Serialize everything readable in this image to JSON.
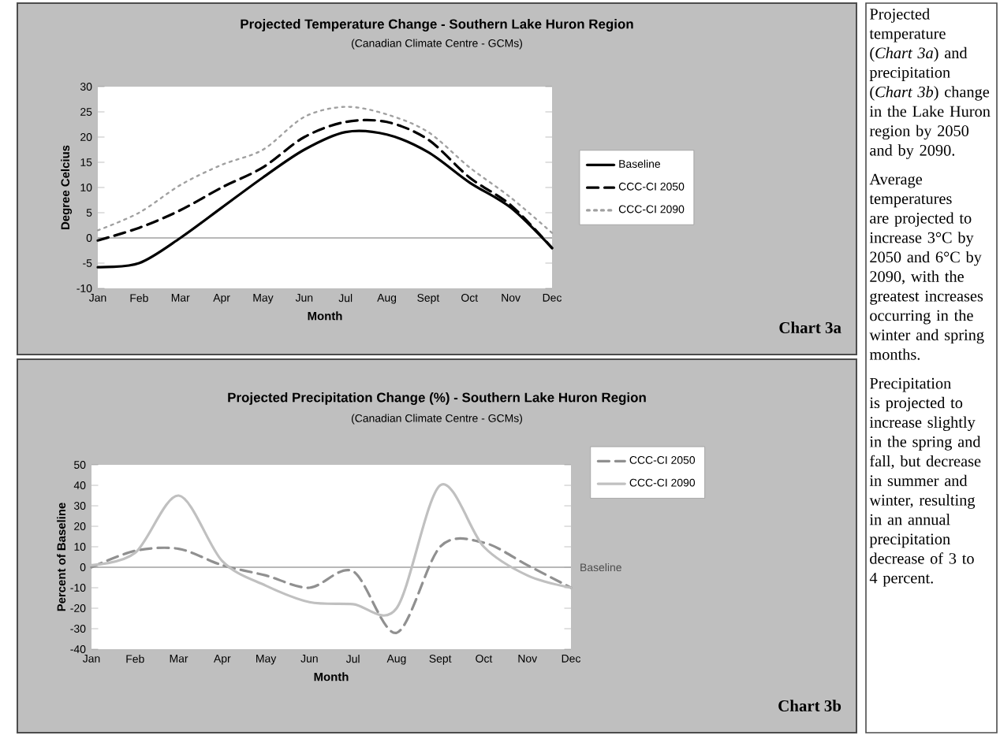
{
  "chart_data": [
    {
      "type": "line",
      "title": "Projected Temperature Change - Southern Lake Huron Region",
      "subtitle": "(Canadian Climate Centre - GCMs)",
      "xlabel": "Month",
      "ylabel": "Degree Celcius",
      "categories": [
        "Jan",
        "Feb",
        "Mar",
        "Apr",
        "May",
        "Jun",
        "Jul",
        "Aug",
        "Sept",
        "Oct",
        "Nov",
        "Dec"
      ],
      "ylim": [
        -10,
        30
      ],
      "yticks": [
        -10,
        -5,
        0,
        5,
        10,
        15,
        20,
        25,
        30
      ],
      "legend": "right",
      "series": [
        {
          "name": "Baseline",
          "color": "#000000",
          "line_style": "solid",
          "values": [
            -5.8,
            -5,
            0,
            6,
            12,
            17.5,
            21,
            20.5,
            17,
            11,
            6,
            -2
          ]
        },
        {
          "name": "CCC-CI 2050",
          "color": "#000000",
          "line_style": "dashed",
          "values": [
            -0.5,
            2,
            5.5,
            10,
            14,
            20,
            23,
            23,
            19.5,
            12,
            6.5,
            -2
          ]
        },
        {
          "name": "CCC-CI 2090",
          "color": "#a0a0a0",
          "line_style": "dotted",
          "values": [
            1.5,
            5,
            10.5,
            14.5,
            17.5,
            24,
            26,
            24.5,
            21,
            14,
            8,
            1
          ]
        }
      ],
      "ref_lines": [
        {
          "axis": "y",
          "value": 0,
          "color": "#a0a0a0"
        }
      ],
      "annotations": [
        "Chart 3a"
      ]
    },
    {
      "type": "line",
      "title": "Projected Precipitation Change (%) - Southern Lake Huron Region",
      "subtitle": "(Canadian Climate Centre - GCMs)",
      "xlabel": "Month",
      "ylabel": "Percent of Baseline",
      "categories": [
        "Jan",
        "Feb",
        "Mar",
        "Apr",
        "May",
        "Jun",
        "Jul",
        "Aug",
        "Sept",
        "Oct",
        "Nov",
        "Dec"
      ],
      "ylim": [
        -40,
        50
      ],
      "yticks": [
        -40,
        -30,
        -20,
        -10,
        0,
        10,
        20,
        30,
        40,
        50
      ],
      "legend": "top right",
      "series": [
        {
          "name": "CCC-CI 2050",
          "color": "#909090",
          "line_style": "dashed",
          "values": [
            0,
            8,
            9,
            1,
            -4,
            -10,
            -2,
            -32,
            10,
            12,
            1,
            -10
          ]
        },
        {
          "name": "CCC-CI 2090",
          "color": "#c0c0c0",
          "line_style": "solid",
          "values": [
            1,
            7,
            35,
            3,
            -9,
            -17,
            -18,
            -20,
            40,
            10,
            -4,
            -10
          ]
        }
      ],
      "ref_lines": [
        {
          "axis": "y",
          "value": 0,
          "label": "Baseline",
          "color": "#a0a0a0"
        }
      ],
      "annotations": [
        "Chart 3b"
      ]
    },
    {
      "type": "other",
      "annotations": [
        "Projected temperature (*Chart 3a*) and precipitation (*Chart 3b*) change in the Lake Huron region by 2050 and by 2090.",
        "Average temperatures are projected to increase 3°C by 2050 and 6°C by 2090, with the greatest increases occurring in the winter and spring months.",
        "Precipitation is projected to increase slightly in the spring and fall, but decrease in summer and winter, resulting in an annual precipitation decrease of 3 to 4 percent."
      ]
    }
  ]
}
